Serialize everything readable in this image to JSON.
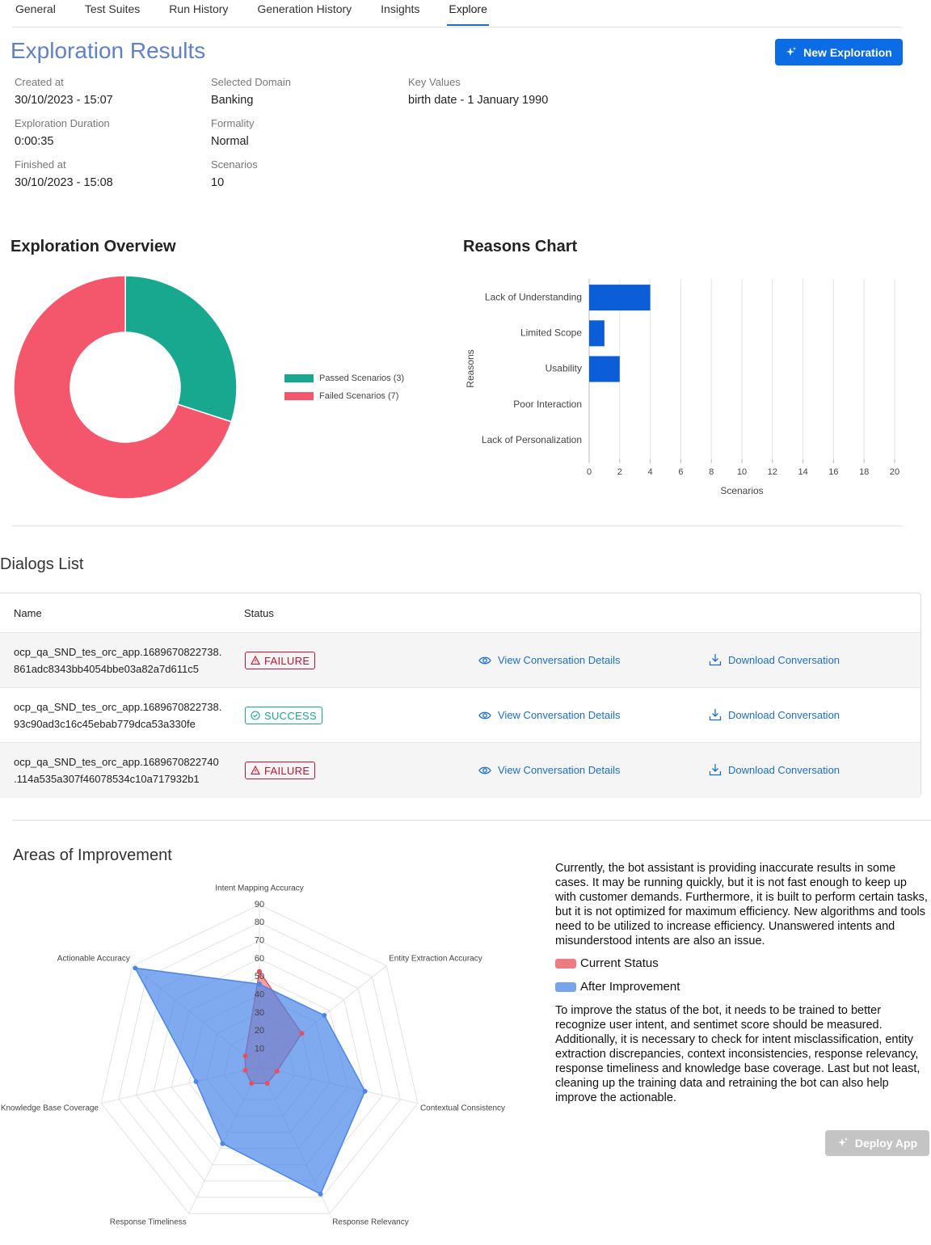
{
  "tabs": [
    "General",
    "Test Suites",
    "Run History",
    "Generation History",
    "Insights",
    "Explore"
  ],
  "active_tab": 5,
  "header": {
    "title": "Exploration Results",
    "button": "New Exploration"
  },
  "details": [
    [
      {
        "label": "Created at",
        "value": "30/10/2023 - 15:07"
      },
      {
        "label": "Exploration Duration",
        "value": "0:00:35"
      },
      {
        "label": "Finished at",
        "value": "30/10/2023 - 15:08"
      }
    ],
    [
      {
        "label": "Selected Domain",
        "value": "Banking"
      },
      {
        "label": "Formality",
        "value": "Normal"
      },
      {
        "label": "Scenarios",
        "value": "10"
      }
    ],
    [
      {
        "label": "Key Values",
        "value": "birth date - 1 January 1990"
      }
    ]
  ],
  "chart_data": [
    {
      "type": "donut",
      "title": "Exploration Overview",
      "categories": [
        "Passed Scenarios (3)",
        "Failed Scenarios (7)"
      ],
      "values": [
        3,
        7
      ],
      "colors": [
        "#17a88f",
        "#f4566b"
      ]
    },
    {
      "type": "bar",
      "orientation": "horizontal",
      "title": "Reasons Chart",
      "categories": [
        "Lack of Understanding",
        "Limited Scope",
        "Usability",
        "Poor Interaction",
        "Lack of Personalization"
      ],
      "values": [
        4,
        1,
        2,
        0,
        0
      ],
      "color": "#0b5ed7",
      "xlim": [
        0,
        20
      ],
      "xticks": [
        0,
        2,
        4,
        6,
        8,
        10,
        12,
        14,
        16,
        18,
        20
      ],
      "xlabel": "Scenarios",
      "ylabel": "Reasons",
      "grid": true
    },
    {
      "type": "radar",
      "title": "Areas of Improvement",
      "categories": [
        "Intent Mapping Accuracy",
        "Entity Extraction Accuracy",
        "Contextual Consistency",
        "Response Relevancy",
        "Response Timeliness",
        "Knowledge Base Coverage",
        "Actionable Accuracy"
      ],
      "rlim": [
        0,
        90
      ],
      "rticks": [
        10,
        20,
        30,
        40,
        50,
        60,
        70,
        80,
        90
      ],
      "series": [
        {
          "name": "Current Status",
          "color": "#e8505b",
          "values": [
            53,
            30,
            10,
            10,
            10,
            8,
            10
          ]
        },
        {
          "name": "After Improvement",
          "color": "#4a86e8",
          "values": [
            46,
            46,
            60,
            78,
            47,
            36,
            88
          ]
        }
      ]
    }
  ],
  "dialogs": {
    "title": "Dialogs List",
    "columns": [
      "Name",
      "Status"
    ],
    "rows": [
      {
        "name": [
          "ocp_qa_SND_tes_orc_app.1689670822738.",
          "861adc8343bb4054bbe03a82a7d611c5"
        ],
        "status": "FAILURE",
        "status_color": "#c8102e",
        "view": "View Conversation Details",
        "download": "Download Conversation"
      },
      {
        "name": [
          "ocp_qa_SND_tes_orc_app.1689670822738.",
          "93c90ad3c16c45ebab779dca53a330fe"
        ],
        "status": "SUCCESS",
        "status_color": "#17a88f",
        "view": "View Conversation Details",
        "download": "Download Conversation"
      },
      {
        "name": [
          "ocp_qa_SND_tes_orc_app.1689670822740",
          ".114a535a307f46078534c10a717932b1"
        ],
        "status": "FAILURE",
        "status_color": "#c8102e",
        "view": "View Conversation Details",
        "download": "Download Conversation"
      }
    ]
  },
  "improvement": {
    "summary": "Currently, the bot assistant is providing inaccurate results in some cases. It may be running quickly, but it is not fast enough to keep up with customer demands. Furthermore, it is built to perform certain tasks, but it is not optimized for maximum efficiency. New algorithms and tools need to be utilized to increase efficiency. Unanswered intents and misunderstood intents are also an issue.",
    "recommendation": "To improve the status of the bot, it needs to be trained to better recognize user intent, and sentimet score should be measured. Additionally, it is necessary to check for intent misclassification, entity extraction discrepancies, context inconsistencies, response relevancy, response timeliness and knowledge base coverage. Last but not least, cleaning up the training data and retraining the bot can also help improve the actionable.",
    "button": "Deploy App"
  }
}
